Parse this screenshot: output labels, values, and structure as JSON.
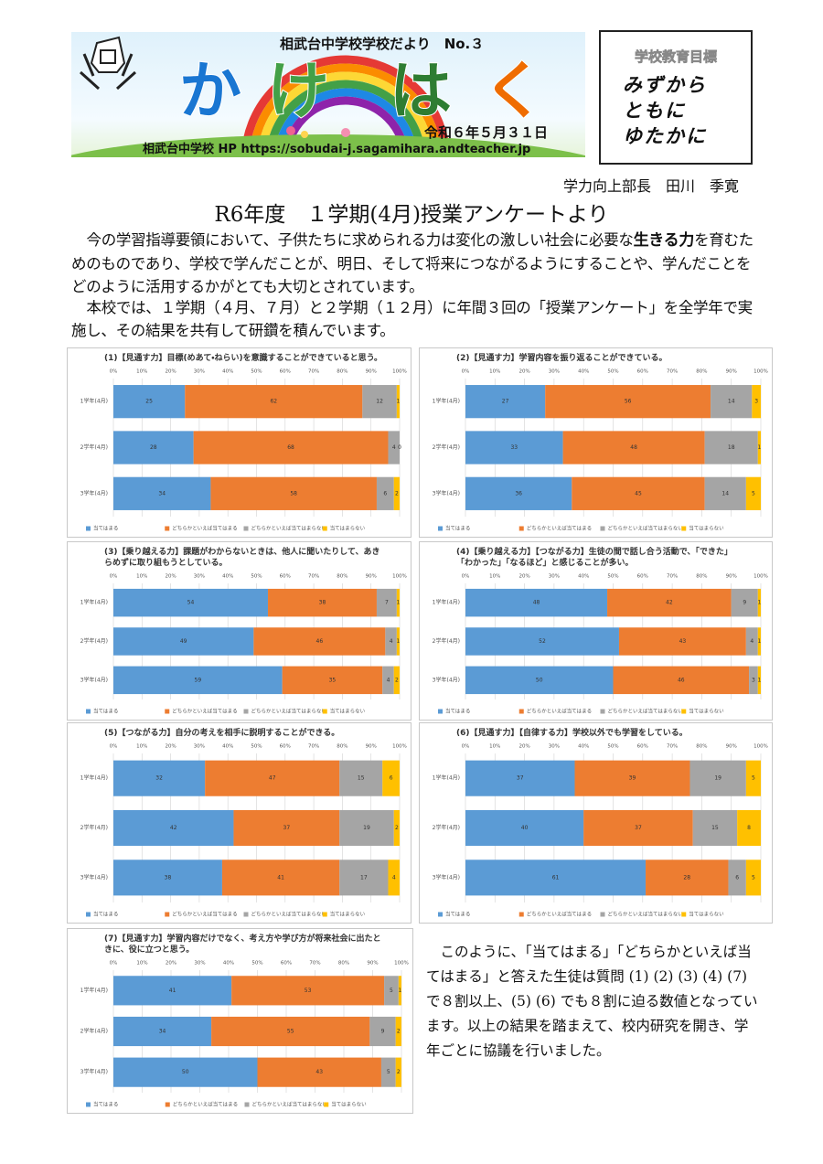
{
  "header": {
    "newsletter": "相武台中学校学校だより　No.３",
    "name_chars": [
      "か",
      "け",
      "は",
      "く"
    ],
    "date": "令和６年５月３１日",
    "homepage": "相武台中学校 HP https://sobudai-j.sagamihara.andteacher.jp"
  },
  "goal_box": {
    "heading": "学校教育目標",
    "lines": [
      "みずから",
      "ともに",
      "ゆたかに"
    ]
  },
  "author": "学力向上部長　田川　季寛",
  "title": "R6年度　１学期(4月)授業アンケートより",
  "paragraph1": {
    "before": "今の学習指導要領において、子供たちに求められる力は変化の激しい社会に必要な",
    "bold": "生きる力",
    "after": "を育むためのものであり、学校で学んだことが、明日、そして将来につながるようにすることや、学んだことをどのように活用するかがとても大切とされています。"
  },
  "paragraph2": "本校では、１学期（４月、７月）と２学期（１２月）に年間３回の「授業アンケート」を全学年で実施し、その結果を共有して研鑽を積んでいます。",
  "conclusion": "このように、「当てはまる」「どちらかといえば当てはまる」と答えた生徒は質問 (1) (2) (3) (4) (7) で８割以上、(5) (6) でも８割に迫る数値となっています。以上の結果を踏まえて、校内研究を開き、学年ごとに協議を行いました。",
  "chart_data": [
    {
      "type": "bar",
      "orientation": "horizontal",
      "stacked": true,
      "title": "(1)【見通す力】目標(めあて・ねらい)を意識することができていると思う。",
      "categories": [
        "1学年(4月)",
        "2学年(4月)",
        "3学年(4月)"
      ],
      "series": [
        {
          "name": "当てはまる",
          "color": "#5b9bd5",
          "values": [
            25,
            28,
            34
          ]
        },
        {
          "name": "どちらかといえば当てはまる",
          "color": "#ed7d31",
          "values": [
            62,
            68,
            58
          ]
        },
        {
          "name": "どちらかといえば当てはまらない",
          "color": "#a5a5a5",
          "values": [
            12,
            4,
            6
          ]
        },
        {
          "name": "当てはまらない",
          "color": "#ffc000",
          "values": [
            1,
            0,
            2
          ]
        }
      ],
      "xlim": [
        0,
        100
      ],
      "xticks": [
        {
          "value": 0,
          "label": "0%"
        },
        {
          "value": 10,
          "label": "10%"
        },
        {
          "value": 20,
          "label": "20%"
        },
        {
          "value": 30,
          "label": "30%"
        },
        {
          "value": 40,
          "label": "40%"
        },
        {
          "value": 50,
          "label": "50%"
        },
        {
          "value": 60,
          "label": "60%"
        },
        {
          "value": 70,
          "label": "70%"
        },
        {
          "value": 80,
          "label": "80%"
        },
        {
          "value": 90,
          "label": "90%"
        },
        {
          "value": 100,
          "label": "100%"
        }
      ],
      "grid": true,
      "legend": "bottom"
    },
    {
      "type": "bar",
      "orientation": "horizontal",
      "stacked": true,
      "title": "(2)【見通す力】学習内容を振り返ることができている。",
      "categories": [
        "1学年(4月)",
        "2学年(4月)",
        "3学年(4月)"
      ],
      "series": [
        {
          "name": "当てはまる",
          "color": "#5b9bd5",
          "values": [
            27,
            33,
            36
          ]
        },
        {
          "name": "どちらかといえば当てはまる",
          "color": "#ed7d31",
          "values": [
            56,
            48,
            45
          ]
        },
        {
          "name": "どちらかといえば当てはまらない",
          "color": "#a5a5a5",
          "values": [
            14,
            18,
            14
          ]
        },
        {
          "name": "当てはまらない",
          "color": "#ffc000",
          "values": [
            3,
            1,
            5
          ]
        }
      ],
      "xlim": [
        0,
        100
      ],
      "xticks": [
        {
          "value": 0,
          "label": "0%"
        },
        {
          "value": 10,
          "label": "10%"
        },
        {
          "value": 20,
          "label": "20%"
        },
        {
          "value": 30,
          "label": "30%"
        },
        {
          "value": 40,
          "label": "40%"
        },
        {
          "value": 50,
          "label": "50%"
        },
        {
          "value": 60,
          "label": "60%"
        },
        {
          "value": 70,
          "label": "70%"
        },
        {
          "value": 80,
          "label": "80%"
        },
        {
          "value": 90,
          "label": "90%"
        },
        {
          "value": 100,
          "label": "100%"
        }
      ],
      "grid": true,
      "legend": "bottom"
    },
    {
      "type": "bar",
      "orientation": "horizontal",
      "stacked": true,
      "title": "(3)【乗り越える力】課題がわからないときは、他人に聞いたりして、あきらめずに取り組もうとしている。",
      "categories": [
        "1学年(4月)",
        "2学年(4月)",
        "3学年(4月)"
      ],
      "series": [
        {
          "name": "当てはまる",
          "color": "#5b9bd5",
          "values": [
            54,
            49,
            59
          ]
        },
        {
          "name": "どちらかといえば当てはまる",
          "color": "#ed7d31",
          "values": [
            38,
            46,
            35
          ]
        },
        {
          "name": "どちらかといえば当てはまらない",
          "color": "#a5a5a5",
          "values": [
            7,
            4,
            4
          ]
        },
        {
          "name": "当てはまらない",
          "color": "#ffc000",
          "values": [
            1,
            1,
            2
          ]
        }
      ],
      "xlim": [
        0,
        100
      ],
      "xticks": [
        {
          "value": 0,
          "label": "0%"
        },
        {
          "value": 10,
          "label": "10%"
        },
        {
          "value": 20,
          "label": "20%"
        },
        {
          "value": 30,
          "label": "30%"
        },
        {
          "value": 40,
          "label": "40%"
        },
        {
          "value": 50,
          "label": "50%"
        },
        {
          "value": 60,
          "label": "60%"
        },
        {
          "value": 70,
          "label": "70%"
        },
        {
          "value": 80,
          "label": "80%"
        },
        {
          "value": 90,
          "label": "90%"
        },
        {
          "value": 100,
          "label": "100%"
        }
      ],
      "grid": true,
      "legend": "bottom"
    },
    {
      "type": "bar",
      "orientation": "horizontal",
      "stacked": true,
      "title": "(4)【乗り越える力】【つながる力】生徒の間で話し合う活動で、「できた」「わかった」「なるほど」と感じることが多い。",
      "categories": [
        "1学年(4月)",
        "2学年(4月)",
        "3学年(4月)"
      ],
      "series": [
        {
          "name": "当てはまる",
          "color": "#5b9bd5",
          "values": [
            48,
            52,
            50
          ]
        },
        {
          "name": "どちらかといえば当てはまる",
          "color": "#ed7d31",
          "values": [
            42,
            43,
            46
          ]
        },
        {
          "name": "どちらかといえば当てはまらない",
          "color": "#a5a5a5",
          "values": [
            9,
            4,
            3
          ]
        },
        {
          "name": "当てはまらない",
          "color": "#ffc000",
          "values": [
            1,
            1,
            1
          ]
        }
      ],
      "xlim": [
        0,
        100
      ],
      "xticks": [
        {
          "value": 0,
          "label": "0%"
        },
        {
          "value": 10,
          "label": "10%"
        },
        {
          "value": 20,
          "label": "20%"
        },
        {
          "value": 30,
          "label": "30%"
        },
        {
          "value": 40,
          "label": "40%"
        },
        {
          "value": 50,
          "label": "50%"
        },
        {
          "value": 60,
          "label": "60%"
        },
        {
          "value": 70,
          "label": "70%"
        },
        {
          "value": 80,
          "label": "80%"
        },
        {
          "value": 90,
          "label": "90%"
        },
        {
          "value": 100,
          "label": "100%"
        }
      ],
      "grid": true,
      "legend": "bottom"
    },
    {
      "type": "bar",
      "orientation": "horizontal",
      "stacked": true,
      "title": "(5)【つながる力】自分の考えを相手に説明することができる。",
      "categories": [
        "1学年(4月)",
        "2学年(4月)",
        "3学年(4月)"
      ],
      "series": [
        {
          "name": "当てはまる",
          "color": "#5b9bd5",
          "values": [
            32,
            42,
            38
          ]
        },
        {
          "name": "どちらかといえば当てはまる",
          "color": "#ed7d31",
          "values": [
            47,
            37,
            41
          ]
        },
        {
          "name": "どちらかといえば当てはまらない",
          "color": "#a5a5a5",
          "values": [
            15,
            19,
            17
          ]
        },
        {
          "name": "当てはまらない",
          "color": "#ffc000",
          "values": [
            6,
            2,
            4
          ]
        }
      ],
      "xlim": [
        0,
        100
      ],
      "xticks": [
        {
          "value": 0,
          "label": "0%"
        },
        {
          "value": 10,
          "label": "10%"
        },
        {
          "value": 20,
          "label": "20%"
        },
        {
          "value": 30,
          "label": "30%"
        },
        {
          "value": 40,
          "label": "40%"
        },
        {
          "value": 50,
          "label": "50%"
        },
        {
          "value": 60,
          "label": "60%"
        },
        {
          "value": 70,
          "label": "70%"
        },
        {
          "value": 80,
          "label": "80%"
        },
        {
          "value": 90,
          "label": "90%"
        },
        {
          "value": 100,
          "label": "100%"
        }
      ],
      "grid": true,
      "legend": "bottom"
    },
    {
      "type": "bar",
      "orientation": "horizontal",
      "stacked": true,
      "title": "(6)【見通す力】【自律する力】学校以外でも学習をしている。",
      "categories": [
        "1学年(4月)",
        "2学年(4月)",
        "3学年(4月)"
      ],
      "series": [
        {
          "name": "当てはまる",
          "color": "#5b9bd5",
          "values": [
            37,
            40,
            61
          ]
        },
        {
          "name": "どちらかといえば当てはまる",
          "color": "#ed7d31",
          "values": [
            39,
            37,
            28
          ]
        },
        {
          "name": "どちらかといえば当てはまらない",
          "color": "#a5a5a5",
          "values": [
            19,
            15,
            6
          ]
        },
        {
          "name": "当てはまらない",
          "color": "#ffc000",
          "values": [
            5,
            8,
            5
          ]
        }
      ],
      "xlim": [
        0,
        100
      ],
      "xticks": [
        {
          "value": 0,
          "label": "0%"
        },
        {
          "value": 10,
          "label": "10%"
        },
        {
          "value": 20,
          "label": "20%"
        },
        {
          "value": 30,
          "label": "30%"
        },
        {
          "value": 40,
          "label": "40%"
        },
        {
          "value": 50,
          "label": "50%"
        },
        {
          "value": 60,
          "label": "60%"
        },
        {
          "value": 70,
          "label": "70%"
        },
        {
          "value": 80,
          "label": "80%"
        },
        {
          "value": 90,
          "label": "90%"
        },
        {
          "value": 100,
          "label": "100%"
        }
      ],
      "grid": true,
      "legend": "bottom"
    },
    {
      "type": "bar",
      "orientation": "horizontal",
      "stacked": true,
      "title": "(7)【見通す力】学習内容だけでなく、考え方や学び方が将来社会に出たときに、役に立つと思う。",
      "categories": [
        "1学年(4月)",
        "2学年(4月)",
        "3学年(4月)"
      ],
      "series": [
        {
          "name": "当てはまる",
          "color": "#5b9bd5",
          "values": [
            41,
            34,
            50
          ]
        },
        {
          "name": "どちらかといえば当てはまる",
          "color": "#ed7d31",
          "values": [
            53,
            55,
            43
          ]
        },
        {
          "name": "どちらかといえば当てはまらない",
          "color": "#a5a5a5",
          "values": [
            5,
            9,
            5
          ]
        },
        {
          "name": "当てはまらない",
          "color": "#ffc000",
          "values": [
            1,
            2,
            2
          ]
        }
      ],
      "xlim": [
        0,
        100
      ],
      "xticks": [
        {
          "value": 0,
          "label": "0%"
        },
        {
          "value": 10,
          "label": "10%"
        },
        {
          "value": 20,
          "label": "20%"
        },
        {
          "value": 30,
          "label": "30%"
        },
        {
          "value": 40,
          "label": "40%"
        },
        {
          "value": 50,
          "label": "50%"
        },
        {
          "value": 60,
          "label": "60%"
        },
        {
          "value": 70,
          "label": "70%"
        },
        {
          "value": 80,
          "label": "80%"
        },
        {
          "value": 90,
          "label": "90%"
        },
        {
          "value": 100,
          "label": "100%"
        }
      ],
      "grid": true,
      "legend": "bottom"
    }
  ]
}
